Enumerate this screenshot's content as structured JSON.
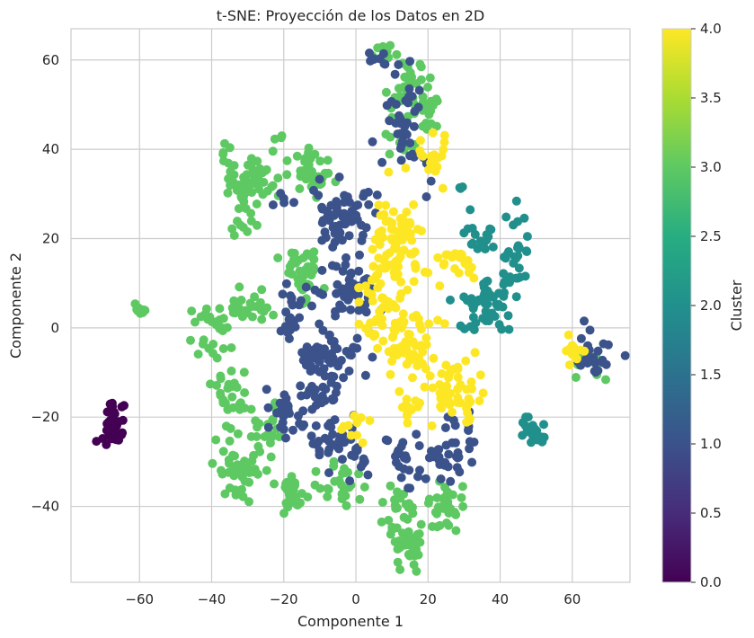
{
  "chart_data": {
    "type": "scatter",
    "title": "t-SNE: Proyección de los Datos en 2D",
    "xlabel": "Componente 1",
    "ylabel": "Componente 2",
    "xlim": [
      -79,
      76
    ],
    "ylim": [
      -57,
      67
    ],
    "xticks": [
      -60,
      -40,
      -20,
      0,
      20,
      40,
      60
    ],
    "yticks": [
      -40,
      -20,
      0,
      20,
      40,
      60
    ],
    "grid": true,
    "colorbar": {
      "label": "Cluster",
      "range": [
        0.0,
        4.0
      ],
      "ticks": [
        "0.0",
        "0.5",
        "1.0",
        "1.5",
        "2.0",
        "2.5",
        "3.0",
        "3.5",
        "4.0"
      ],
      "colormap": "viridis"
    },
    "clusters": [
      {
        "value": 0,
        "color": "#440154",
        "blobs": [
          [
            -67.5,
            -22.5,
            1.8,
            2.5,
            45
          ]
        ]
      },
      {
        "value": 1,
        "color": "#3b528b",
        "blobs": [
          [
            -5,
            25,
            5,
            5,
            60
          ],
          [
            -2,
            8,
            4,
            4,
            45
          ],
          [
            14,
            45,
            5,
            7,
            45
          ],
          [
            -5,
            -8,
            5,
            5,
            45
          ],
          [
            -18,
            3,
            3,
            3,
            25
          ],
          [
            -20,
            -20,
            3,
            4,
            25
          ],
          [
            -8,
            -26,
            3,
            4,
            25
          ],
          [
            -12,
            -8,
            3,
            3,
            20
          ],
          [
            26,
            -28,
            4,
            5,
            40
          ],
          [
            12,
            -28,
            3,
            4,
            20
          ],
          [
            0,
            -28,
            3,
            3,
            15
          ],
          [
            66,
            -6,
            3,
            3,
            25
          ],
          [
            5,
            60,
            1.5,
            1.5,
            6
          ],
          [
            -20,
            29,
            1.5,
            1.5,
            5
          ],
          [
            -10,
            -15,
            3,
            3,
            12
          ]
        ]
      },
      {
        "value": 2,
        "color": "#21908d",
        "blobs": [
          [
            35,
            20,
            3,
            3,
            20
          ],
          [
            44,
            15,
            2,
            6,
            30
          ],
          [
            35,
            5,
            4,
            4,
            45
          ],
          [
            50,
            -23,
            2,
            2,
            20
          ],
          [
            30,
            31,
            1,
            1,
            3
          ]
        ]
      },
      {
        "value": 3,
        "color": "#5ec962",
        "blobs": [
          [
            -30,
            33,
            5,
            3,
            55
          ],
          [
            -12,
            35,
            3,
            3,
            35
          ],
          [
            15,
            55,
            3,
            3,
            25
          ],
          [
            12,
            45,
            4,
            5,
            20
          ],
          [
            -15,
            12,
            3,
            3,
            40
          ],
          [
            -30,
            5,
            4,
            2,
            25
          ],
          [
            -40,
            0,
            3,
            4,
            30
          ],
          [
            -33,
            -32,
            3,
            4,
            45
          ],
          [
            -35,
            -14,
            3,
            4,
            25
          ],
          [
            -18,
            -38,
            2,
            2,
            25
          ],
          [
            -5,
            -35,
            4,
            4,
            25
          ],
          [
            12,
            -40,
            4,
            4,
            20
          ],
          [
            25,
            -40,
            3,
            3,
            30
          ],
          [
            15,
            -48,
            3,
            3,
            40
          ],
          [
            -25,
            -25,
            3,
            5,
            25
          ],
          [
            -30,
            25,
            3,
            3,
            15
          ],
          [
            65,
            -8,
            2,
            2,
            10
          ],
          [
            -60,
            4,
            1,
            1,
            10
          ],
          [
            8,
            62,
            2,
            1,
            10
          ],
          [
            20,
            50,
            2,
            3,
            20
          ],
          [
            -22,
            42,
            1,
            1,
            4
          ],
          [
            -36,
            40,
            1,
            1,
            4
          ]
        ]
      },
      {
        "value": 4,
        "color": "#fde725",
        "blobs": [
          [
            12,
            18,
            4,
            7,
            80
          ],
          [
            15,
            -3,
            5,
            4,
            60
          ],
          [
            27,
            -15,
            4,
            4,
            55
          ],
          [
            22,
            38,
            3,
            4,
            20
          ],
          [
            28,
            15,
            3,
            2,
            20
          ],
          [
            5,
            8,
            3,
            3,
            20
          ],
          [
            15,
            -18,
            2,
            2,
            15
          ],
          [
            0,
            -22,
            2,
            2,
            10
          ],
          [
            60,
            -5,
            2,
            2,
            15
          ],
          [
            5,
            0,
            2,
            2,
            10
          ]
        ]
      }
    ]
  }
}
